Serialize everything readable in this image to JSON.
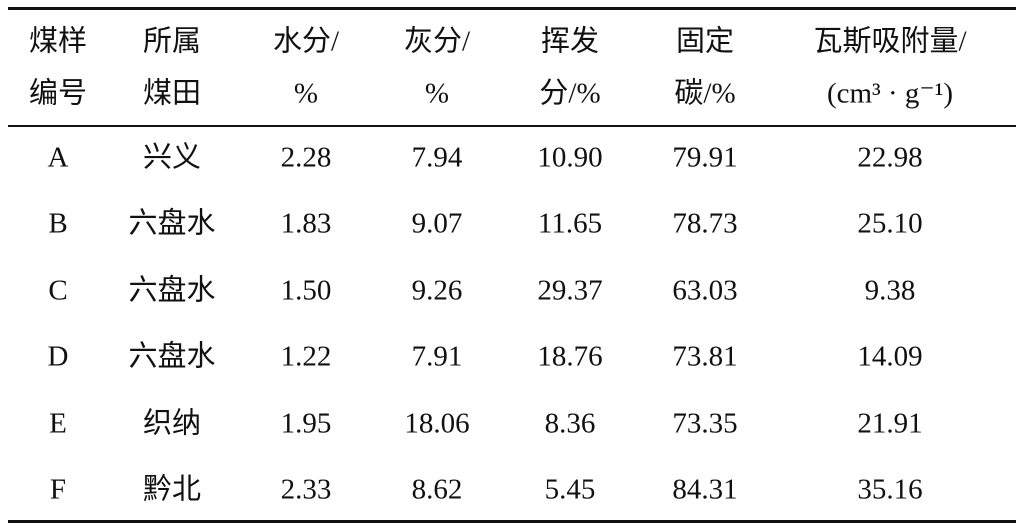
{
  "table": {
    "header": [
      [
        "煤样",
        "编号"
      ],
      [
        "所属",
        "煤田"
      ],
      [
        "水分/",
        "%"
      ],
      [
        "灰分/",
        "%"
      ],
      [
        "挥发",
        "分/%"
      ],
      [
        "固定",
        "碳/%"
      ],
      [
        "瓦斯吸附量/",
        "(cm³ · g⁻¹)"
      ]
    ],
    "rows": [
      [
        "A",
        "兴义",
        "2.28",
        "7.94",
        "10.90",
        "79.91",
        "22.98"
      ],
      [
        "B",
        "六盘水",
        "1.83",
        "9.07",
        "11.65",
        "78.73",
        "25.10"
      ],
      [
        "C",
        "六盘水",
        "1.50",
        "9.26",
        "29.37",
        "63.03",
        "9.38"
      ],
      [
        "D",
        "六盘水",
        "1.22",
        "7.91",
        "18.76",
        "73.81",
        "14.09"
      ],
      [
        "E",
        "织纳",
        "1.95",
        "18.06",
        "8.36",
        "73.35",
        "21.91"
      ],
      [
        "F",
        "黔北",
        "2.33",
        "8.62",
        "5.45",
        "84.31",
        "35.16"
      ]
    ]
  }
}
